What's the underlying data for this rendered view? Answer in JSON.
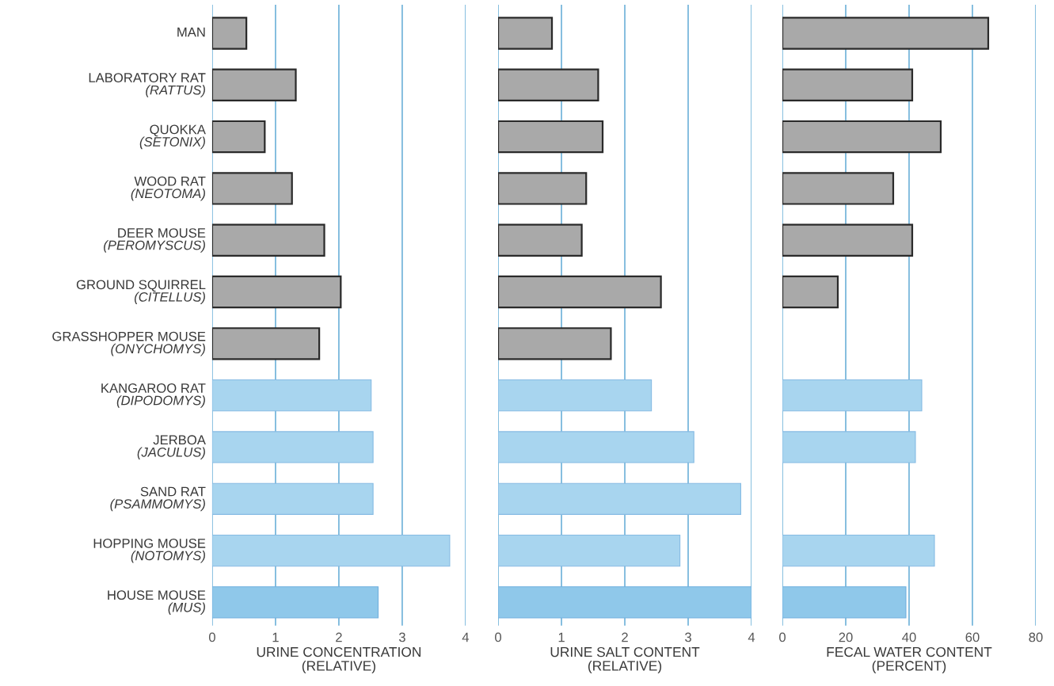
{
  "chart_data": [
    {
      "type": "bar",
      "orientation": "horizontal",
      "categories": [
        "MAN",
        "LABORATORY RAT\n(RATTUS)",
        "QUOKKA\n(SETONIX)",
        "WOOD RAT\n(NEOTOMA)",
        "DEER MOUSE\n(PEROMYSCUS)",
        "GROUND SQUIRREL\n(CITELLUS)",
        "GRASSHOPPER MOUSE\n(ONYCHOMYS)",
        "KANGAROO RAT\n(DIPODOMYS)",
        "JERBOA\n(JACULUS)",
        "SAND RAT\n(PSAMMOMYS)",
        "HOPPING MOUSE\n(NOTOMYS)",
        "HOUSE MOUSE\n(MUS)"
      ],
      "values": [
        0.54,
        1.32,
        0.83,
        1.26,
        1.77,
        2.03,
        1.69,
        2.51,
        2.54,
        2.54,
        3.75,
        2.62
      ],
      "colors": [
        "#a9a9a9",
        "#a9a9a9",
        "#a9a9a9",
        "#a9a9a9",
        "#a9a9a9",
        "#a9a9a9",
        "#a9a9a9",
        "#a8d5ef",
        "#a8d5ef",
        "#a8d5ef",
        "#a8d5ef",
        "#8fc8ea"
      ],
      "xlim": [
        0,
        4
      ],
      "xticks": [
        0,
        1,
        2,
        3,
        4
      ],
      "xlabel": "URINE CONCENTRATION\n(RELATIVE)",
      "grid": "x"
    },
    {
      "type": "bar",
      "orientation": "horizontal",
      "categories": [
        null,
        null,
        null,
        null,
        null,
        null,
        null,
        null,
        null,
        null,
        null,
        null
      ],
      "values": [
        0.85,
        1.58,
        1.65,
        1.39,
        1.32,
        2.57,
        1.78,
        2.42,
        3.09,
        3.83,
        2.87,
        4.0
      ],
      "colors": [
        "#a9a9a9",
        "#a9a9a9",
        "#a9a9a9",
        "#a9a9a9",
        "#a9a9a9",
        "#a9a9a9",
        "#a9a9a9",
        "#a8d5ef",
        "#a8d5ef",
        "#a8d5ef",
        "#a8d5ef",
        "#8fc8ea"
      ],
      "xlim": [
        0,
        4
      ],
      "xticks": [
        0,
        1,
        2,
        3,
        4
      ],
      "xlabel": "URINE SALT CONTENT\n(RELATIVE)",
      "grid": "x",
      "tick_labels": "x"
    },
    {
      "type": "bar",
      "orientation": "horizontal",
      "categories": [
        null,
        null,
        null,
        null,
        null,
        null,
        null,
        null,
        null,
        null,
        null,
        null
      ],
      "values": [
        65,
        41,
        50,
        35,
        41,
        17.5,
        null,
        44,
        42,
        null,
        48,
        39
      ],
      "colors": [
        "#a9a9a9",
        "#a9a9a9",
        "#a9a9a9",
        "#a9a9a9",
        "#a9a9a9",
        "#a9a9a9",
        "#a9a9a9",
        "#a8d5ef",
        "#a8d5ef",
        "#a8d5ef",
        "#a8d5ef",
        "#8fc8ea"
      ],
      "xlim": [
        0,
        80
      ],
      "xticks": [
        0,
        20,
        40,
        60,
        80
      ],
      "xlabel": "FECAL WATER CONTENT\n(PERCENT)",
      "grid": "x",
      "tick_labels": "x"
    }
  ]
}
